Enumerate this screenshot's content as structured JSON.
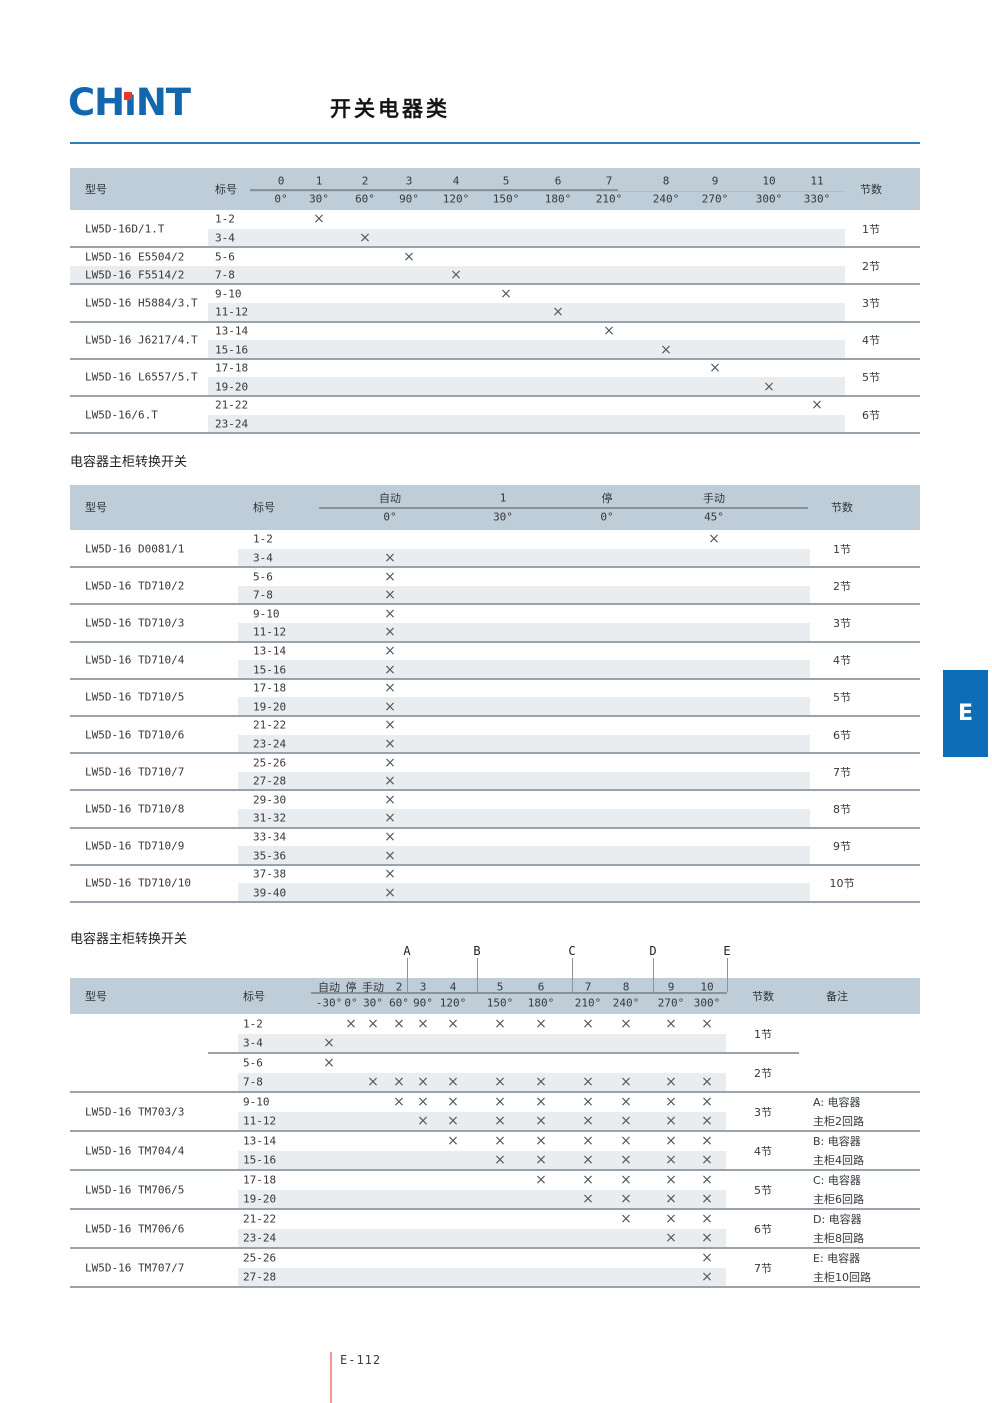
{
  "logo": {
    "part1": "CH",
    "part2": "ı",
    "part3": "NT"
  },
  "header": {
    "title": "开关电器类"
  },
  "side_tab": {
    "label": "E"
  },
  "footer": {
    "page_label": "E-112"
  },
  "mark_glyph": "×",
  "colors": {
    "header_rule_blue": "#2a7fc0",
    "table_header_band": "#bfcdd9",
    "row_shade": "#e9edf0",
    "side_tab_blue": "#0d6db6",
    "logo_blue": "#1267ae",
    "logo_red": "#e8372c",
    "footer_line_red": "#ef9a9a"
  },
  "tables": [
    {
      "title": null,
      "head": {
        "model": "型号",
        "label": "标号",
        "sections": "节数",
        "remark": null
      },
      "cols_top": [
        "0",
        "1",
        "2",
        "3",
        "4",
        "5",
        "6",
        "7",
        "8",
        "9",
        "10",
        "11"
      ],
      "cols_deg": [
        "0°",
        "30°",
        "60°",
        "90°",
        "120°",
        "150°",
        "180°",
        "210°",
        "240°",
        "270°",
        "300°",
        "330°"
      ],
      "groups": [
        {
          "model": "LW5D-16D/1.T",
          "sections": "1节",
          "rows": [
            {
              "label": "1-2",
              "marks": [
                1
              ]
            },
            {
              "label": "3-4",
              "marks": [
                2
              ]
            }
          ]
        },
        {
          "sections": "2节",
          "rows": [
            {
              "model": "LW5D-16 E5504/2",
              "label": "5-6",
              "marks": [
                3
              ]
            },
            {
              "model": "LW5D-16 F5514/2",
              "label": "7-8",
              "marks": [
                4
              ]
            }
          ]
        },
        {
          "model": "LW5D-16 H5884/3.T",
          "sections": "3节",
          "rows": [
            {
              "label": "9-10",
              "marks": [
                5
              ]
            },
            {
              "label": "11-12",
              "marks": [
                6
              ]
            }
          ]
        },
        {
          "model": "LW5D-16 J6217/4.T",
          "sections": "4节",
          "rows": [
            {
              "label": "13-14",
              "marks": [
                7
              ]
            },
            {
              "label": "15-16",
              "marks": [
                8
              ]
            }
          ]
        },
        {
          "model": "LW5D-16 L6557/5.T",
          "sections": "5节",
          "rows": [
            {
              "label": "17-18",
              "marks": [
                9
              ]
            },
            {
              "label": "19-20",
              "marks": [
                10
              ]
            }
          ]
        },
        {
          "model": "LW5D-16/6.T",
          "sections": "6节",
          "rows": [
            {
              "label": "21-22",
              "marks": [
                11
              ]
            },
            {
              "label": "23-24",
              "marks": []
            }
          ]
        }
      ]
    },
    {
      "title": "电容器主柜转换开关",
      "head": {
        "model": "型号",
        "label": "标号",
        "sections": "节数",
        "remark": null
      },
      "cols_top": [
        "自动",
        "1",
        "停",
        "手动"
      ],
      "cols_deg": [
        "0°",
        "30°",
        "0°",
        "45°"
      ],
      "groups": [
        {
          "model": "LW5D-16 D0081/1",
          "sections": "1节",
          "rows": [
            {
              "label": "1-2",
              "marks": [
                3
              ]
            },
            {
              "label": "3-4",
              "marks": [
                0
              ]
            }
          ]
        },
        {
          "model": "LW5D-16 TD710/2",
          "sections": "2节",
          "rows": [
            {
              "label": "5-6",
              "marks": [
                0
              ]
            },
            {
              "label": "7-8",
              "marks": [
                0
              ]
            }
          ]
        },
        {
          "model": "LW5D-16 TD710/3",
          "sections": "3节",
          "rows": [
            {
              "label": "9-10",
              "marks": [
                0
              ]
            },
            {
              "label": "11-12",
              "marks": [
                0
              ]
            }
          ]
        },
        {
          "model": "LW5D-16 TD710/4",
          "sections": "4节",
          "rows": [
            {
              "label": "13-14",
              "marks": [
                0
              ]
            },
            {
              "label": "15-16",
              "marks": [
                0
              ]
            }
          ]
        },
        {
          "model": "LW5D-16 TD710/5",
          "sections": "5节",
          "rows": [
            {
              "label": "17-18",
              "marks": [
                0
              ]
            },
            {
              "label": "19-20",
              "marks": [
                0
              ]
            }
          ]
        },
        {
          "model": "LW5D-16 TD710/6",
          "sections": "6节",
          "rows": [
            {
              "label": "21-22",
              "marks": [
                0
              ]
            },
            {
              "label": "23-24",
              "marks": [
                0
              ]
            }
          ]
        },
        {
          "model": "LW5D-16 TD710/7",
          "sections": "7节",
          "rows": [
            {
              "label": "25-26",
              "marks": [
                0
              ]
            },
            {
              "label": "27-28",
              "marks": [
                0
              ]
            }
          ]
        },
        {
          "model": "LW5D-16 TD710/8",
          "sections": "8节",
          "rows": [
            {
              "label": "29-30",
              "marks": [
                0
              ]
            },
            {
              "label": "31-32",
              "marks": [
                0
              ]
            }
          ]
        },
        {
          "model": "LW5D-16 TD710/9",
          "sections": "9节",
          "rows": [
            {
              "label": "33-34",
              "marks": [
                0
              ]
            },
            {
              "label": "35-36",
              "marks": [
                0
              ]
            }
          ]
        },
        {
          "model": "LW5D-16 TD710/10",
          "sections": "10节",
          "rows": [
            {
              "label": "37-38",
              "marks": [
                0
              ]
            },
            {
              "label": "39-40",
              "marks": [
                0
              ]
            }
          ]
        }
      ]
    },
    {
      "title": "电容器主柜转换开关",
      "head": {
        "model": "型号",
        "label": "标号",
        "sections": "节数",
        "remark": "备注"
      },
      "markers": [
        "A",
        "B",
        "C",
        "D",
        "E"
      ],
      "cols_top": [
        "自动",
        "停",
        "手动",
        "2",
        "3",
        "4",
        "5",
        "6",
        "7",
        "8",
        "9",
        "10"
      ],
      "cols_deg": [
        "-30°",
        "0°",
        "30°",
        "60°",
        "90°",
        "120°",
        "150°",
        "180°",
        "210°",
        "240°",
        "270°",
        "300°"
      ],
      "groups": [
        {
          "sections": "1节",
          "rows": [
            {
              "label": "1-2",
              "marks": [
                1,
                2,
                3,
                4,
                5,
                6,
                7,
                8,
                9,
                10,
                11
              ]
            },
            {
              "label": "3-4",
              "marks": [
                0
              ]
            }
          ]
        },
        {
          "sections": "2节",
          "rows": [
            {
              "label": "5-6",
              "marks": [
                0
              ]
            },
            {
              "label": "7-8",
              "marks": [
                2,
                3,
                4,
                5,
                6,
                7,
                8,
                9,
                10,
                11
              ]
            }
          ]
        },
        {
          "model": "LW5D-16 TM703/3",
          "sections": "3节",
          "remark": [
            "A: 电容器",
            "主柜2回路"
          ],
          "rows": [
            {
              "label": "9-10",
              "marks": [
                3,
                4,
                5,
                6,
                7,
                8,
                9,
                10,
                11
              ]
            },
            {
              "label": "11-12",
              "marks": [
                4,
                5,
                6,
                7,
                8,
                9,
                10,
                11
              ]
            }
          ]
        },
        {
          "model": "LW5D-16 TM704/4",
          "sections": "4节",
          "remark": [
            "B: 电容器",
            "主柜4回路"
          ],
          "rows": [
            {
              "label": "13-14",
              "marks": [
                5,
                6,
                7,
                8,
                9,
                10,
                11
              ]
            },
            {
              "label": "15-16",
              "marks": [
                6,
                7,
                8,
                9,
                10,
                11
              ]
            }
          ]
        },
        {
          "model": "LW5D-16 TM706/5",
          "sections": "5节",
          "remark": [
            "C: 电容器",
            "主柜6回路"
          ],
          "rows": [
            {
              "label": "17-18",
              "marks": [
                7,
                8,
                9,
                10,
                11
              ]
            },
            {
              "label": "19-20",
              "marks": [
                8,
                9,
                10,
                11
              ]
            }
          ]
        },
        {
          "model": "LW5D-16 TM706/6",
          "sections": "6节",
          "remark": [
            "D: 电容器",
            "主柜8回路"
          ],
          "rows": [
            {
              "label": "21-22",
              "marks": [
                9,
                10,
                11
              ]
            },
            {
              "label": "23-24",
              "marks": [
                10,
                11
              ]
            }
          ]
        },
        {
          "model": "LW5D-16 TM707/7",
          "sections": "7节",
          "remark": [
            "E: 电容器",
            "主柜10回路"
          ],
          "rows": [
            {
              "label": "25-26",
              "marks": [
                11
              ]
            },
            {
              "label": "27-28",
              "marks": [
                11
              ]
            }
          ]
        }
      ]
    }
  ]
}
